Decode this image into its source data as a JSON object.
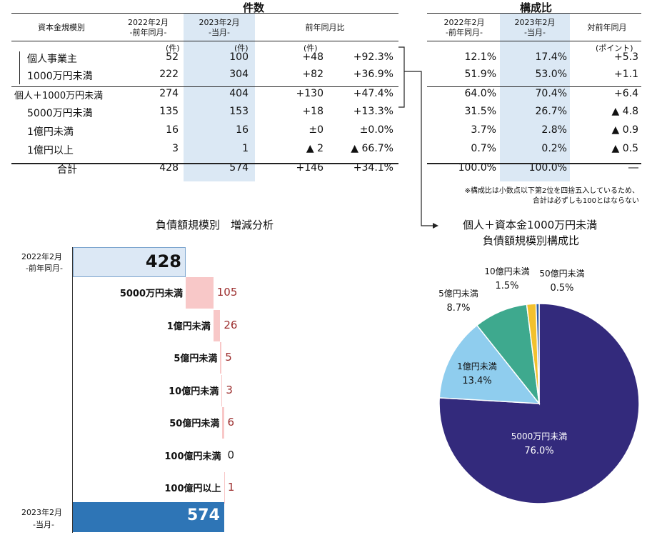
{
  "left_table": {
    "title": "件数",
    "headers": {
      "category": "資本金規模別",
      "prev_line1": "2022年2月",
      "prev_line2": "-前年同月-",
      "curr_line1": "2023年2月",
      "curr_line2": "-当月-",
      "yoy": "前年同月比"
    },
    "units": {
      "prev": "(件)",
      "curr": "(件)",
      "yoy": "(件)"
    },
    "rows": [
      {
        "label": "個人事業主",
        "prev": "52",
        "curr": "100",
        "diff": "+48",
        "pct": "+92.3%"
      },
      {
        "label": "1000万円未満",
        "prev": "222",
        "curr": "304",
        "diff": "+82",
        "pct": "+36.9%"
      },
      {
        "label": "個人＋1000万円未満",
        "prev": "274",
        "curr": "404",
        "diff": "+130",
        "pct": "+47.4%"
      },
      {
        "label": "5000万円未満",
        "prev": "135",
        "curr": "153",
        "diff": "+18",
        "pct": "+13.3%"
      },
      {
        "label": "1億円未満",
        "prev": "16",
        "curr": "16",
        "diff": "±0",
        "pct": "±0.0%"
      },
      {
        "label": "1億円以上",
        "prev": "3",
        "curr": "1",
        "diff": "▲ 2",
        "pct": "▲ 66.7%"
      },
      {
        "label": "合計",
        "prev": "428",
        "curr": "574",
        "diff": "+146",
        "pct": "+34.1%"
      }
    ]
  },
  "right_table": {
    "title": "構成比",
    "headers": {
      "prev_line1": "2022年2月",
      "prev_line2": "-前年同月-",
      "curr_line1": "2023年2月",
      "curr_line2": "-当月-",
      "diff": "対前年同月"
    },
    "unit": "(ポイント)",
    "rows": [
      {
        "prev": "12.1%",
        "curr": "17.4%",
        "diff": "+5.3"
      },
      {
        "prev": "51.9%",
        "curr": "53.0%",
        "diff": "+1.1"
      },
      {
        "prev": "64.0%",
        "curr": "70.4%",
        "diff": "+6.4"
      },
      {
        "prev": "31.5%",
        "curr": "26.7%",
        "diff": "▲ 4.8"
      },
      {
        "prev": "3.7%",
        "curr": "2.8%",
        "diff": "▲ 0.9"
      },
      {
        "prev": "0.7%",
        "curr": "0.2%",
        "diff": "▲ 0.5"
      },
      {
        "prev": "100.0%",
        "curr": "100.0%",
        "diff": "―"
      }
    ],
    "note_line1": "※構成比は小数点以下第2位を四捨五入しているため、",
    "note_line2": "合計は必ずしも100とはならない"
  },
  "chart_data": [
    {
      "type": "bar",
      "subtype": "waterfall",
      "title": "負債額規模別　増減分析",
      "start": {
        "label_line1": "2022年2月",
        "label_line2": "-前年同月-",
        "value": 428
      },
      "end": {
        "label_line1": "2023年2月",
        "label_line2": "-当月-",
        "value": 574
      },
      "categories": [
        "5000万円未満",
        "1億円未満",
        "5億円未満",
        "10億円未満",
        "50億円未満",
        "100億円未満",
        "100億円以上"
      ],
      "values": [
        105,
        26,
        5,
        3,
        6,
        0,
        1
      ],
      "value_labels": [
        "105",
        "26",
        "5",
        "3",
        "6",
        "0",
        "1"
      ],
      "colors": {
        "start": "#dce8f5",
        "end": "#2e75b6",
        "increase": "#f8c8c8",
        "value_text": "#9b2c2c"
      }
    },
    {
      "type": "pie",
      "title_line1": "個人＋資本金1000万円未満",
      "title_line2": "負債額規模別構成比",
      "slices": [
        {
          "label": "5000万円未満",
          "value": 76.0,
          "pct_label": "76.0%",
          "color": "#332a7c"
        },
        {
          "label": "1億円未満",
          "value": 13.4,
          "pct_label": "13.4%",
          "color": "#8fcdee"
        },
        {
          "label": "5億円未満",
          "value": 8.7,
          "pct_label": "8.7%",
          "color": "#3ea98e"
        },
        {
          "label": "10億円未満",
          "value": 1.5,
          "pct_label": "1.5%",
          "color": "#f2c12e"
        },
        {
          "label": "50億円未満",
          "value": 0.5,
          "pct_label": "0.5%",
          "color": "#2e5fa8"
        }
      ]
    }
  ]
}
